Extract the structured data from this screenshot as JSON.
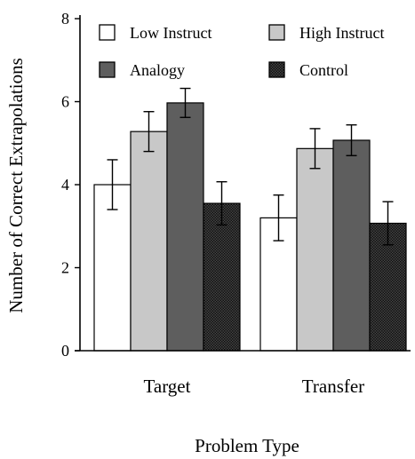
{
  "chart_data": {
    "type": "bar",
    "title": "",
    "xlabel": "Problem Type",
    "ylabel": "Number of Correct Extrapolations",
    "ylim": [
      0,
      8
    ],
    "yticks": [
      0,
      2,
      4,
      6,
      8
    ],
    "grid": false,
    "legend_position": "top",
    "categories": [
      "Target",
      "Transfer"
    ],
    "series": [
      {
        "name": "Low Instruct",
        "values": [
          4.0,
          3.2
        ],
        "error": [
          0.6,
          0.55
        ],
        "fill": "#ffffff"
      },
      {
        "name": "High Instruct",
        "values": [
          5.28,
          4.87
        ],
        "error": [
          0.48,
          0.48
        ],
        "fill": "#c8c8c8"
      },
      {
        "name": "Analogy",
        "values": [
          5.97,
          5.07
        ],
        "error": [
          0.35,
          0.37
        ],
        "fill": "#5e5e5e"
      },
      {
        "name": "Control",
        "values": [
          3.55,
          3.07
        ],
        "error": [
          0.52,
          0.52
        ],
        "fill": "pattern"
      }
    ]
  }
}
